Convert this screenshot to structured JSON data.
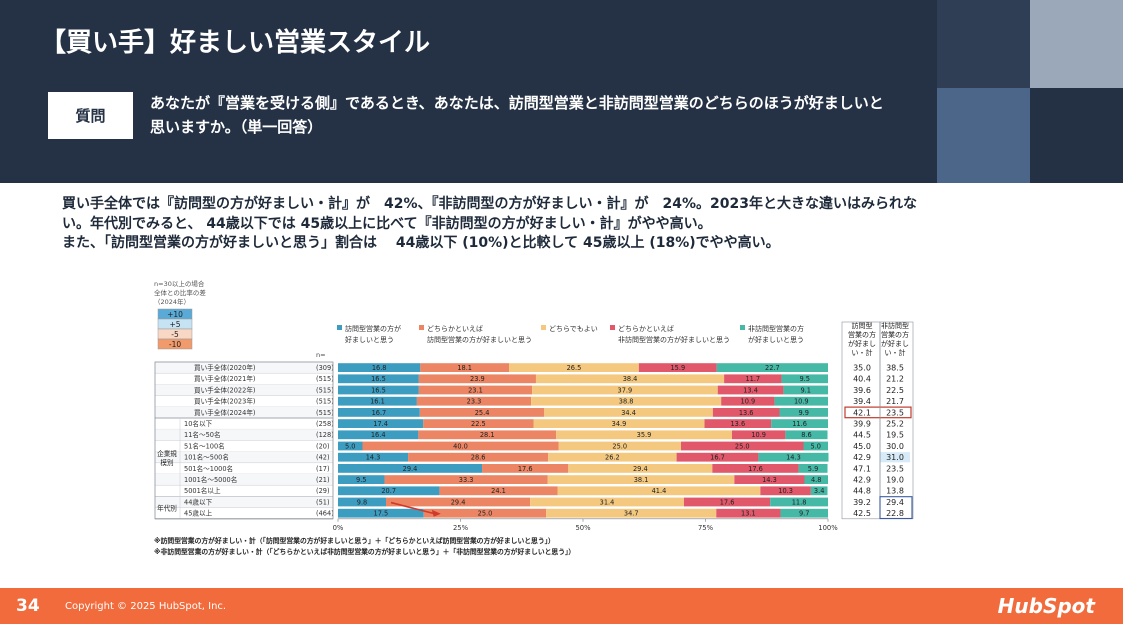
{
  "slide": {
    "title": "【買い手】好ましい営業スタイル",
    "question_label": "質問",
    "question_text": "あなたが『営業を受ける側』であるとき、あなたは、訪問型営業と非訪問型営業のどちらのほうが好ましいと思いますか。（単一回答）",
    "summary_lines": [
      "買い手全体では『訪問型の方が好ましい・計』が　42%、『非訪問型の方が好ましい・計』が　24%。2023年と大きな違いはみられな",
      "い。年代別でみると、 44歳以下では 45歳以上に比べて『非訪問型の方が好ましい・計』がやや高い。",
      "また、「訪問型営業の方が好ましいと思う」割合は　 44歳以下 (10%)と比較して 45歳以上 (18%)でやや高い。"
    ],
    "page_number": "34",
    "copyright": "Copyright © 2025 HubSpot, Inc.",
    "logo": "HubSpot"
  },
  "chart_data": {
    "type": "bar",
    "orientation": "horizontal-stacked-100",
    "note_lines": [
      "n=30以上の場合",
      "全体との比率の差",
      "（2024年）"
    ],
    "diff_legend": [
      {
        "label": "+10",
        "color": "#5aaad8"
      },
      {
        "label": "+5",
        "color": "#c5e3f3"
      },
      {
        "label": "-5",
        "color": "#f8d8c4"
      },
      {
        "label": "-10",
        "color": "#f19a6b"
      }
    ],
    "n_header": "n=",
    "series": [
      {
        "name": "訪問型営業の方が好ましいと思う",
        "color": "#3d9dc1"
      },
      {
        "name": "どちらかといえば訪問型営業の方が好ましいと思う",
        "color": "#eb8563"
      },
      {
        "name": "どちらでもよい",
        "color": "#f4c97f"
      },
      {
        "name": "どちらかといえば非訪問型営業の方が好ましいと思う",
        "color": "#e0586a"
      },
      {
        "name": "非訪問型営業の方が好ましいと思う",
        "color": "#45b8a6"
      }
    ],
    "summary_headers": [
      "訪問型営業の方が好ましい・計",
      "非訪問型営業の方が好ましい・計"
    ],
    "groups": [
      {
        "label": "",
        "rows": [
          {
            "label": "買い手全体(2020年)",
            "n": "(309)",
            "values": [
              16.8,
              18.1,
              26.5,
              15.9,
              22.7
            ],
            "visit": "35.0",
            "non_visit": "38.5"
          },
          {
            "label": "買い手全体(2021年)",
            "n": "(515)",
            "values": [
              16.5,
              23.9,
              38.4,
              11.7,
              9.5
            ],
            "visit": "40.4",
            "non_visit": "21.2"
          },
          {
            "label": "買い手全体(2022年)",
            "n": "(515)",
            "values": [
              16.5,
              23.1,
              37.9,
              13.4,
              9.1
            ],
            "visit": "39.6",
            "non_visit": "22.5"
          },
          {
            "label": "買い手全体(2023年)",
            "n": "(515)",
            "values": [
              16.1,
              23.3,
              38.8,
              10.9,
              10.9
            ],
            "visit": "39.4",
            "non_visit": "21.7"
          },
          {
            "label": "買い手全体(2024年)",
            "n": "(515)",
            "values": [
              16.7,
              25.4,
              34.4,
              13.6,
              9.9
            ],
            "visit": "42.1",
            "non_visit": "23.5",
            "boxed": true
          }
        ]
      },
      {
        "label": "企業規模別",
        "rows": [
          {
            "label": "10名以下",
            "n": "(258)",
            "values": [
              17.4,
              22.5,
              34.9,
              13.6,
              11.6
            ],
            "visit": "39.9",
            "non_visit": "25.2"
          },
          {
            "label": "11名～50名",
            "n": "(128)",
            "values": [
              16.4,
              28.1,
              35.9,
              10.9,
              8.6
            ],
            "visit": "44.5",
            "non_visit": "19.5"
          },
          {
            "label": "51名～100名",
            "n": "(20)",
            "values": [
              5.0,
              40.0,
              25.0,
              25.0,
              5.0
            ],
            "visit": "45.0",
            "non_visit": "30.0"
          },
          {
            "label": "101名～500名",
            "n": "(42)",
            "values": [
              14.3,
              28.6,
              26.2,
              16.7,
              14.3
            ],
            "visit": "42.9",
            "non_visit": "31.0",
            "highlight_non_visit": true
          },
          {
            "label": "501名～1000名",
            "n": "(17)",
            "values": [
              29.4,
              17.6,
              29.4,
              17.6,
              5.9
            ],
            "visit": "47.1",
            "non_visit": "23.5"
          },
          {
            "label": "1001名～5000名",
            "n": "(21)",
            "values": [
              9.5,
              33.3,
              38.1,
              14.3,
              4.8
            ],
            "visit": "42.9",
            "non_visit": "19.0"
          },
          {
            "label": "5001名以上",
            "n": "(29)",
            "values": [
              20.7,
              24.1,
              41.4,
              10.3,
              3.4
            ],
            "visit": "44.8",
            "non_visit": "13.8"
          }
        ]
      },
      {
        "label": "年代別",
        "rows": [
          {
            "label": "44歳以下",
            "n": "(51)",
            "values": [
              9.8,
              29.4,
              31.4,
              17.6,
              11.8
            ],
            "visit": "39.2",
            "non_visit": "29.4",
            "boxed_non_visit": true
          },
          {
            "label": "45歳以上",
            "n": "(464)",
            "values": [
              17.5,
              25.0,
              34.7,
              13.1,
              9.7
            ],
            "visit": "42.5",
            "non_visit": "22.8",
            "boxed_non_visit": true
          }
        ]
      }
    ],
    "x_ticks": [
      "0%",
      "25%",
      "50%",
      "75%",
      "100%"
    ],
    "xlim": [
      0,
      100
    ],
    "footnotes": [
      "※訪問型営業の方が好ましい・計（「訪問型営業の方が好ましいと思う」＋「どちらかといえば訪問型営業の方が好ましいと思う」）",
      "※非訪問型営業の方が好ましい・計（「どちらかといえば非訪問型営業の方が好ましいと思う」＋「非訪問型営業の方が好ましいと思う」）"
    ]
  }
}
